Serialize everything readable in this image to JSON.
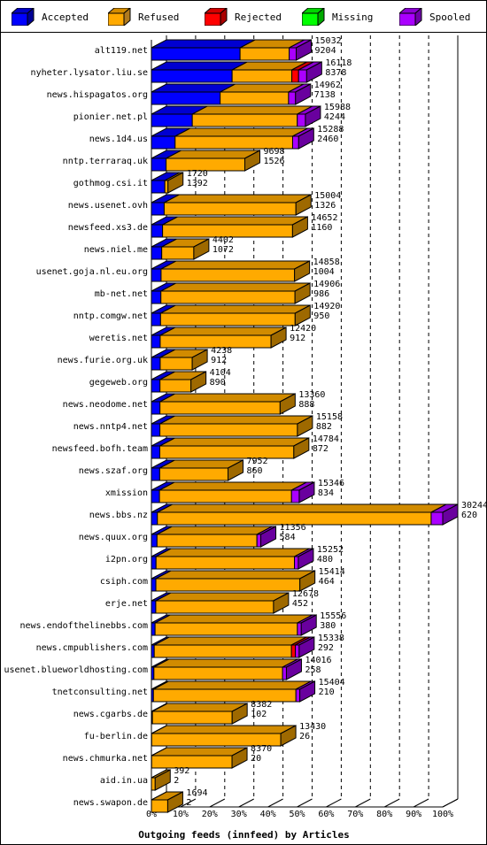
{
  "legend": [
    {
      "label": "Accepted",
      "color": "#0000ff"
    },
    {
      "label": "Refused",
      "color": "#ffaa00"
    },
    {
      "label": "Rejected",
      "color": "#ff0000"
    },
    {
      "label": "Missing",
      "color": "#00ff00"
    },
    {
      "label": "Spooled",
      "color": "#aa00ff"
    }
  ],
  "chart_data": {
    "type": "bar",
    "orientation": "horizontal",
    "stacked": true,
    "xlabel": "Outgoing feeds (innfeed) by Articles",
    "xticks": [
      "0%",
      "10%",
      "20%",
      "30%",
      "40%",
      "50%",
      "60%",
      "70%",
      "80%",
      "90%",
      "100%"
    ],
    "xlim": [
      0,
      30244
    ],
    "series_order": [
      "Accepted",
      "Refused",
      "Rejected",
      "Missing",
      "Spooled"
    ],
    "rows": [
      {
        "host": "alt119.net",
        "offered": "15032",
        "accepted": "9204",
        "segments": [
          9204,
          5100,
          0,
          0,
          728
        ]
      },
      {
        "host": "nyheter.lysator.liu.se",
        "offered": "16118",
        "accepted": "8378",
        "segments": [
          8378,
          6200,
          700,
          0,
          840
        ]
      },
      {
        "host": "news.hispagatos.org",
        "offered": "14962",
        "accepted": "7138",
        "segments": [
          7138,
          7100,
          0,
          0,
          724
        ]
      },
      {
        "host": "pionier.net.pl",
        "offered": "15988",
        "accepted": "4244",
        "segments": [
          4244,
          10900,
          0,
          0,
          844
        ]
      },
      {
        "host": "news.1d4.us",
        "offered": "15288",
        "accepted": "2460",
        "segments": [
          2460,
          12200,
          0,
          0,
          628
        ]
      },
      {
        "host": "nntp.terraraq.uk",
        "offered": "9698",
        "accepted": "1526",
        "segments": [
          1526,
          8172,
          0,
          0,
          0
        ]
      },
      {
        "host": "gothmog.csi.it",
        "offered": "1720",
        "accepted": "1392",
        "segments": [
          1392,
          328,
          0,
          0,
          0
        ]
      },
      {
        "host": "news.usenet.ovh",
        "offered": "15004",
        "accepted": "1326",
        "segments": [
          1326,
          13678,
          0,
          0,
          0
        ]
      },
      {
        "host": "newsfeed.xs3.de",
        "offered": "14652",
        "accepted": "1160",
        "segments": [
          1160,
          13492,
          0,
          0,
          0
        ]
      },
      {
        "host": "news.niel.me",
        "offered": "4402",
        "accepted": "1072",
        "segments": [
          1072,
          3330,
          0,
          0,
          0
        ]
      },
      {
        "host": "usenet.goja.nl.eu.org",
        "offered": "14858",
        "accepted": "1004",
        "segments": [
          1004,
          13854,
          0,
          0,
          0
        ]
      },
      {
        "host": "mb-net.net",
        "offered": "14906",
        "accepted": "986",
        "segments": [
          986,
          13920,
          0,
          0,
          0
        ]
      },
      {
        "host": "nntp.comgw.net",
        "offered": "14920",
        "accepted": "950",
        "segments": [
          950,
          13970,
          0,
          0,
          0
        ]
      },
      {
        "host": "weretis.net",
        "offered": "12420",
        "accepted": "912",
        "segments": [
          912,
          11508,
          0,
          0,
          0
        ]
      },
      {
        "host": "news.furie.org.uk",
        "offered": "4238",
        "accepted": "912",
        "segments": [
          912,
          3326,
          0,
          0,
          0
        ]
      },
      {
        "host": "gegeweb.org",
        "offered": "4104",
        "accepted": "890",
        "segments": [
          890,
          3214,
          0,
          0,
          0
        ]
      },
      {
        "host": "news.neodome.net",
        "offered": "13360",
        "accepted": "888",
        "segments": [
          888,
          12472,
          0,
          0,
          0
        ]
      },
      {
        "host": "news.nntp4.net",
        "offered": "15158",
        "accepted": "882",
        "segments": [
          882,
          14276,
          0,
          0,
          0
        ]
      },
      {
        "host": "newsfeed.bofh.team",
        "offered": "14784",
        "accepted": "872",
        "segments": [
          872,
          13912,
          0,
          0,
          0
        ]
      },
      {
        "host": "news.szaf.org",
        "offered": "7952",
        "accepted": "860",
        "segments": [
          860,
          7092,
          0,
          0,
          0
        ]
      },
      {
        "host": "xmission",
        "offered": "15346",
        "accepted": "834",
        "segments": [
          834,
          13712,
          0,
          0,
          800
        ]
      },
      {
        "host": "news.bbs.nz",
        "offered": "30244",
        "accepted": "620",
        "segments": [
          620,
          28424,
          0,
          0,
          1200
        ]
      },
      {
        "host": "news.quux.org",
        "offered": "11356",
        "accepted": "584",
        "segments": [
          584,
          10372,
          0,
          0,
          400
        ]
      },
      {
        "host": "i2pn.org",
        "offered": "15252",
        "accepted": "480",
        "segments": [
          480,
          14372,
          0,
          0,
          400
        ]
      },
      {
        "host": "csiph.com",
        "offered": "15414",
        "accepted": "464",
        "segments": [
          464,
          14950,
          0,
          0,
          0
        ]
      },
      {
        "host": "erje.net",
        "offered": "12678",
        "accepted": "452",
        "segments": [
          452,
          12226,
          0,
          0,
          0
        ]
      },
      {
        "host": "news.endofthelinebbs.com",
        "offered": "15556",
        "accepted": "380",
        "segments": [
          380,
          14776,
          0,
          0,
          400
        ]
      },
      {
        "host": "news.cmpublishers.com",
        "offered": "15338",
        "accepted": "292",
        "segments": [
          292,
          14246,
          400,
          0,
          400
        ]
      },
      {
        "host": "usenet.blueworldhosting.com",
        "offered": "14016",
        "accepted": "258",
        "segments": [
          258,
          13358,
          0,
          0,
          400
        ]
      },
      {
        "host": "tnetconsulting.net",
        "offered": "15404",
        "accepted": "210",
        "segments": [
          210,
          14794,
          0,
          0,
          400
        ]
      },
      {
        "host": "news.cgarbs.de",
        "offered": "8382",
        "accepted": "102",
        "segments": [
          102,
          8280,
          0,
          0,
          0
        ]
      },
      {
        "host": "fu-berlin.de",
        "offered": "13430",
        "accepted": "26",
        "segments": [
          26,
          13404,
          0,
          0,
          0
        ]
      },
      {
        "host": "news.chmurka.net",
        "offered": "8370",
        "accepted": "20",
        "segments": [
          20,
          8350,
          0,
          0,
          0
        ]
      },
      {
        "host": "aid.in.ua",
        "offered": "392",
        "accepted": "2",
        "segments": [
          2,
          390,
          0,
          0,
          0
        ]
      },
      {
        "host": "news.swapon.de",
        "offered": "1694",
        "accepted": "2",
        "segments": [
          2,
          1692,
          0,
          0,
          0
        ]
      }
    ]
  }
}
